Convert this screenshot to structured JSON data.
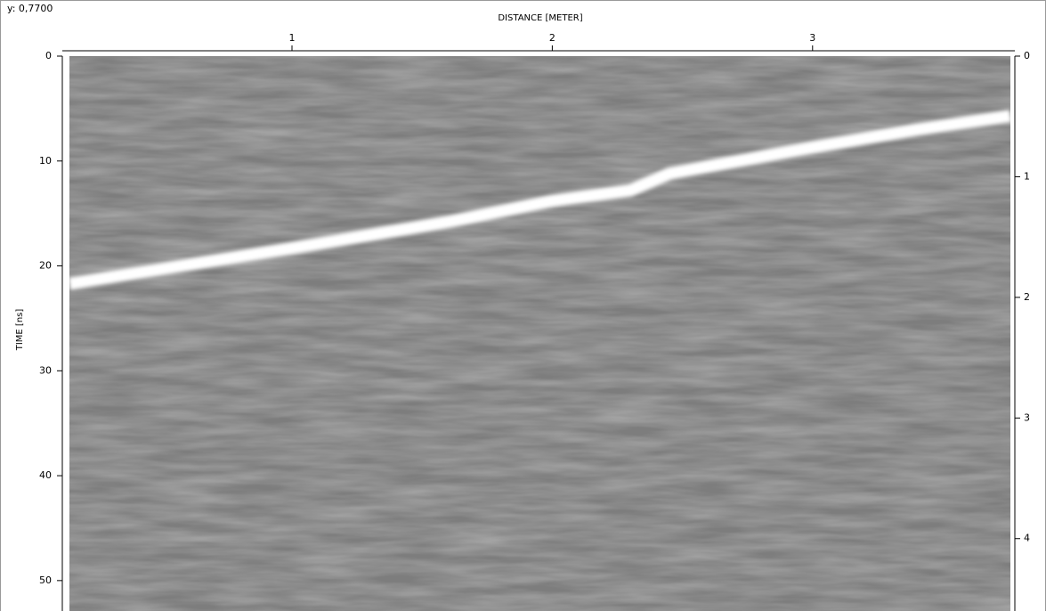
{
  "readout": "y: 0,7700",
  "chart_data": {
    "type": "radargram",
    "xlabel": "DISTANCE [METER]",
    "ylabel": "TIME [ns]",
    "xlim": [
      0.145,
      3.76
    ],
    "xticks": [
      1,
      2,
      3
    ],
    "ylim": [
      0,
      52.9
    ],
    "yticks": [
      0,
      10,
      20,
      30,
      40,
      50
    ],
    "y2lim": [
      0,
      4.6
    ],
    "y2ticks": [
      0,
      1,
      2,
      3,
      4
    ],
    "series": [
      {
        "color": "#ffffff",
        "x": [
          0.145,
          0.6,
          1.075,
          1.6,
          2.0,
          2.3,
          2.45,
          3.0,
          3.4,
          3.76
        ],
        "values": [
          21.7,
          19.9,
          18.0,
          15.8,
          13.8,
          12.8,
          11.2,
          8.7,
          7.0,
          5.7
        ]
      }
    ]
  }
}
